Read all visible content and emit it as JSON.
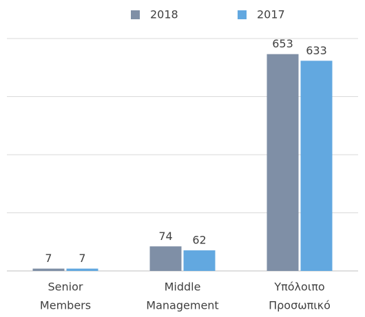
{
  "chart_data": {
    "type": "bar",
    "categories": [
      [
        "Senior",
        "Members"
      ],
      [
        "Middle",
        "Management"
      ],
      [
        "Υπόλοιπο",
        "Προσωπικό"
      ]
    ],
    "series": [
      {
        "name": "2018",
        "color": "#7f8fa6",
        "values": [
          7,
          74,
          653
        ]
      },
      {
        "name": "2017",
        "color": "#62a8e0",
        "values": [
          7,
          62,
          633
        ]
      }
    ],
    "ylim": [
      0,
      700
    ],
    "yticks": [
      0,
      175,
      350,
      525,
      700
    ],
    "grid": true,
    "legend": "top"
  }
}
